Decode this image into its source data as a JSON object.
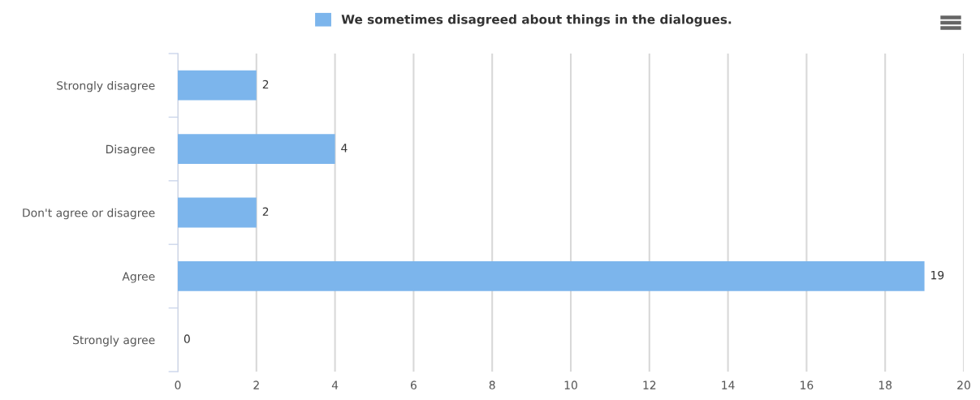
{
  "chart_data": {
    "type": "bar",
    "orientation": "horizontal",
    "categories": [
      "Strongly disagree",
      "Disagree",
      "Don't agree or disagree",
      "Agree",
      "Strongly agree"
    ],
    "series": [
      {
        "name": "We sometimes disagreed about things in the dialogues.",
        "color": "#7cb5ec",
        "values": [
          2,
          4,
          2,
          19,
          0
        ]
      }
    ],
    "xlim": [
      0,
      20
    ],
    "xticks": [
      0,
      2,
      4,
      6,
      8,
      10,
      12,
      14,
      16,
      18,
      20
    ],
    "grid": "x",
    "legend": "top",
    "data_labels": true
  }
}
